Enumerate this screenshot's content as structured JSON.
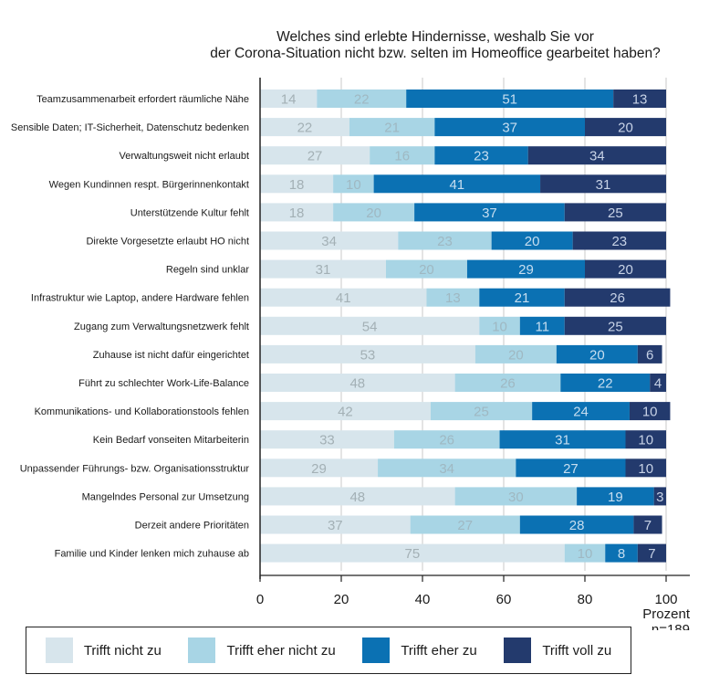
{
  "chart_data": {
    "type": "bar",
    "orientation": "horizontal",
    "stacked": true,
    "title": [
      "Welches sind erlebte Hindernisse, weshalb Sie vor",
      "der Corona-Situation nicht bzw. selten im Homeoffice gearbeitet haben?"
    ],
    "xlabel": "Prozent",
    "note": "n=189",
    "xlim": [
      0,
      100
    ],
    "xticks": [
      "0",
      "20",
      "40",
      "60",
      "80",
      "100"
    ],
    "grid": true,
    "legend_position": "bottom",
    "categories": [
      "Teamzusammenarbeit erfordert räumliche Nähe",
      "Sensible Daten; IT-Sicherheit, Datenschutz bedenken",
      "Verwaltungsweit nicht erlaubt",
      "Wegen Kundinnen respt. Bürgerinnenkontakt",
      "Unterstützende Kultur fehlt",
      "Direkte Vorgesetzte erlaubt HO nicht",
      "Regeln sind unklar",
      "Infrastruktur wie Laptop, andere Hardware fehlen",
      "Zugang zum Verwaltungsnetzwerk fehlt",
      "Zuhause ist nicht dafür eingerichtet",
      "Führt zu schlechter Work-Life-Balance",
      "Kommunikations- und Kollaborationstools fehlen",
      "Kein Bedarf vonseiten Mitarbeiterin",
      "Unpassender Führungs- bzw. Organisationsstruktur",
      "Mangelndes Personal zur Umsetzung",
      "Derzeit andere Prioritäten",
      "Familie und Kinder lenken mich zuhause ab"
    ],
    "series": [
      {
        "name": "Trifft nicht zu",
        "color": "#d7e5ec",
        "label_color": "#a3b0b5",
        "values": [
          14,
          22,
          27,
          18,
          18,
          34,
          31,
          41,
          54,
          53,
          48,
          42,
          33,
          29,
          48,
          37,
          75
        ]
      },
      {
        "name": "Trifft eher nicht zu",
        "color": "#a8d5e5",
        "label_color": "#9fb8c2",
        "values": [
          22,
          21,
          16,
          10,
          20,
          23,
          20,
          13,
          10,
          20,
          26,
          25,
          26,
          34,
          30,
          27,
          10
        ]
      },
      {
        "name": "Trifft eher zu",
        "color": "#0b71b3",
        "label_color": "#c7def0",
        "values": [
          51,
          37,
          23,
          41,
          37,
          20,
          29,
          21,
          11,
          20,
          22,
          24,
          31,
          27,
          19,
          28,
          8
        ]
      },
      {
        "name": "Trifft voll zu",
        "color": "#233a6d",
        "label_color": "#c7d2e6",
        "values": [
          13,
          20,
          34,
          31,
          25,
          23,
          20,
          26,
          25,
          6,
          4,
          10,
          10,
          10,
          3,
          7,
          7
        ]
      }
    ]
  }
}
